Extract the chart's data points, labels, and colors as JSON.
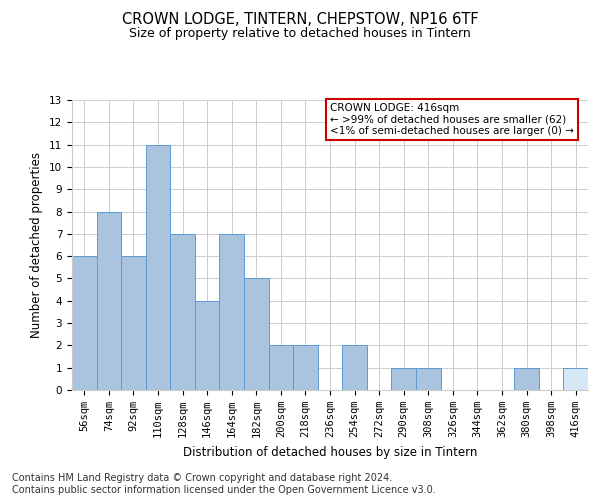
{
  "title1": "CROWN LODGE, TINTERN, CHEPSTOW, NP16 6TF",
  "title2": "Size of property relative to detached houses in Tintern",
  "xlabel": "Distribution of detached houses by size in Tintern",
  "ylabel": "Number of detached properties",
  "footer1": "Contains HM Land Registry data © Crown copyright and database right 2024.",
  "footer2": "Contains public sector information licensed under the Open Government Licence v3.0.",
  "categories": [
    "56sqm",
    "74sqm",
    "92sqm",
    "110sqm",
    "128sqm",
    "146sqm",
    "164sqm",
    "182sqm",
    "200sqm",
    "218sqm",
    "236sqm",
    "254sqm",
    "272sqm",
    "290sqm",
    "308sqm",
    "326sqm",
    "344sqm",
    "362sqm",
    "380sqm",
    "398sqm",
    "416sqm"
  ],
  "values": [
    6,
    8,
    6,
    11,
    7,
    4,
    7,
    5,
    2,
    2,
    0,
    2,
    0,
    1,
    1,
    0,
    0,
    0,
    1,
    0,
    1
  ],
  "highlight_index": 20,
  "bar_color": "#aac4e0",
  "bar_edge_color": "#5b9bd5",
  "highlight_bar_color": "#d6e8f7",
  "highlight_bar_edge_color": "#5b9bd5",
  "annotation_text": "CROWN LODGE: 416sqm\n← >99% of detached houses are smaller (62)\n<1% of semi-detached houses are larger (0) →",
  "annotation_box_edge_color": "#cc0000",
  "annotation_box_face_color": "#ffffff",
  "ylim": [
    0,
    13
  ],
  "yticks": [
    0,
    1,
    2,
    3,
    4,
    5,
    6,
    7,
    8,
    9,
    10,
    11,
    12,
    13
  ],
  "grid_color": "#cccccc",
  "bg_color": "#ffffff",
  "title1_fontsize": 10.5,
  "title2_fontsize": 9,
  "axis_label_fontsize": 8.5,
  "tick_fontsize": 7.5,
  "footer_fontsize": 7,
  "annotation_fontsize": 7.5
}
